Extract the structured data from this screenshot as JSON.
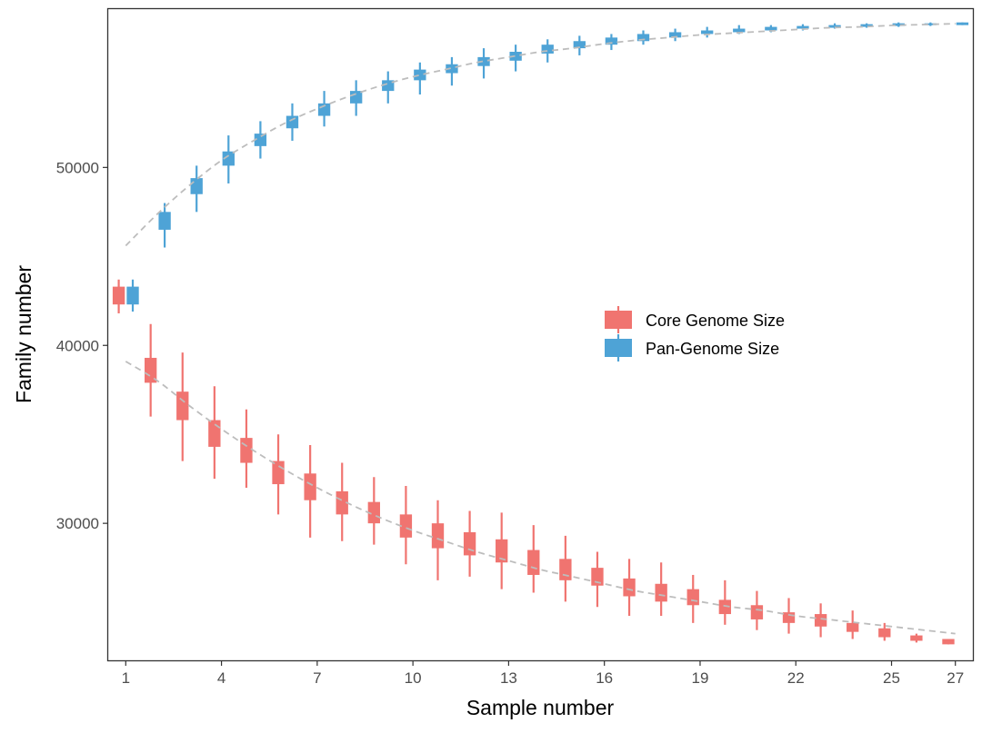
{
  "chart_data": {
    "type": "boxplot",
    "xlabel": "Sample number",
    "ylabel": "Family number",
    "x_ticks": [
      1,
      4,
      7,
      10,
      13,
      16,
      19,
      22,
      25,
      27
    ],
    "y_ticks": [
      30000,
      40000,
      50000
    ],
    "xlim": [
      0.45,
      27.55
    ],
    "ylim": [
      22300,
      58900
    ],
    "grid": false,
    "legend_position": "center-right",
    "series": [
      {
        "name": "Core Genome Size",
        "color": "#F07470",
        "boxes": [
          {
            "x": 1,
            "min": 41800,
            "q1": 42300,
            "q3": 43300,
            "max": 43700
          },
          {
            "x": 2,
            "min": 36000,
            "q1": 37900,
            "q3": 39300,
            "max": 41200
          },
          {
            "x": 3,
            "min": 33500,
            "q1": 35800,
            "q3": 37400,
            "max": 39600
          },
          {
            "x": 4,
            "min": 32500,
            "q1": 34300,
            "q3": 35800,
            "max": 37700
          },
          {
            "x": 5,
            "min": 32000,
            "q1": 33400,
            "q3": 34800,
            "max": 36400
          },
          {
            "x": 6,
            "min": 30500,
            "q1": 32200,
            "q3": 33500,
            "max": 35000
          },
          {
            "x": 7,
            "min": 29200,
            "q1": 31300,
            "q3": 32800,
            "max": 34400
          },
          {
            "x": 8,
            "min": 29000,
            "q1": 30500,
            "q3": 31800,
            "max": 33400
          },
          {
            "x": 9,
            "min": 28800,
            "q1": 30000,
            "q3": 31200,
            "max": 32600
          },
          {
            "x": 10,
            "min": 27700,
            "q1": 29200,
            "q3": 30500,
            "max": 32100
          },
          {
            "x": 11,
            "min": 26800,
            "q1": 28600,
            "q3": 30000,
            "max": 31300
          },
          {
            "x": 12,
            "min": 27000,
            "q1": 28200,
            "q3": 29500,
            "max": 30700
          },
          {
            "x": 13,
            "min": 26300,
            "q1": 27800,
            "q3": 29100,
            "max": 30600
          },
          {
            "x": 14,
            "min": 26100,
            "q1": 27100,
            "q3": 28500,
            "max": 29900
          },
          {
            "x": 15,
            "min": 25600,
            "q1": 26800,
            "q3": 28000,
            "max": 29300
          },
          {
            "x": 16,
            "min": 25300,
            "q1": 26500,
            "q3": 27500,
            "max": 28400
          },
          {
            "x": 17,
            "min": 24800,
            "q1": 25900,
            "q3": 26900,
            "max": 28000
          },
          {
            "x": 18,
            "min": 24800,
            "q1": 25600,
            "q3": 26600,
            "max": 27800
          },
          {
            "x": 19,
            "min": 24400,
            "q1": 25400,
            "q3": 26300,
            "max": 27100
          },
          {
            "x": 20,
            "min": 24300,
            "q1": 24900,
            "q3": 25700,
            "max": 26800
          },
          {
            "x": 21,
            "min": 24000,
            "q1": 24600,
            "q3": 25400,
            "max": 26200
          },
          {
            "x": 22,
            "min": 23800,
            "q1": 24400,
            "q3": 25000,
            "max": 25800
          },
          {
            "x": 23,
            "min": 23600,
            "q1": 24200,
            "q3": 24900,
            "max": 25500
          },
          {
            "x": 24,
            "min": 23500,
            "q1": 23900,
            "q3": 24400,
            "max": 25100
          },
          {
            "x": 25,
            "min": 23400,
            "q1": 23600,
            "q3": 24100,
            "max": 24400
          },
          {
            "x": 26,
            "min": 23300,
            "q1": 23400,
            "q3": 23700,
            "max": 23800
          },
          {
            "x": 27,
            "min": 23200,
            "q1": 23200,
            "q3": 23500,
            "max": 23500
          }
        ],
        "fit": [
          {
            "x": 1,
            "y": 39100
          },
          {
            "x": 2,
            "y": 38000
          },
          {
            "x": 3,
            "y": 36600
          },
          {
            "x": 4,
            "y": 35300
          },
          {
            "x": 5,
            "y": 34100
          },
          {
            "x": 6,
            "y": 33000
          },
          {
            "x": 7,
            "y": 32000
          },
          {
            "x": 8,
            "y": 31100
          },
          {
            "x": 9,
            "y": 30300
          },
          {
            "x": 10,
            "y": 29600
          },
          {
            "x": 11,
            "y": 29000
          },
          {
            "x": 12,
            "y": 28400
          },
          {
            "x": 13,
            "y": 27900
          },
          {
            "x": 14,
            "y": 27400
          },
          {
            "x": 15,
            "y": 27000
          },
          {
            "x": 16,
            "y": 26600
          },
          {
            "x": 17,
            "y": 26200
          },
          {
            "x": 18,
            "y": 25900
          },
          {
            "x": 19,
            "y": 25600
          },
          {
            "x": 20,
            "y": 25300
          },
          {
            "x": 21,
            "y": 25100
          },
          {
            "x": 22,
            "y": 24800
          },
          {
            "x": 23,
            "y": 24600
          },
          {
            "x": 24,
            "y": 24400
          },
          {
            "x": 25,
            "y": 24200
          },
          {
            "x": 26,
            "y": 24000
          },
          {
            "x": 27,
            "y": 23800
          }
        ]
      },
      {
        "name": "Pan-Genome Size",
        "color": "#4EA3D6",
        "boxes": [
          {
            "x": 1,
            "min": 41900,
            "q1": 42300,
            "q3": 43300,
            "max": 43700
          },
          {
            "x": 2,
            "min": 45500,
            "q1": 46500,
            "q3": 47500,
            "max": 48000
          },
          {
            "x": 3,
            "min": 47500,
            "q1": 48500,
            "q3": 49400,
            "max": 50100
          },
          {
            "x": 4,
            "min": 49100,
            "q1": 50100,
            "q3": 50900,
            "max": 51800
          },
          {
            "x": 5,
            "min": 50500,
            "q1": 51200,
            "q3": 51900,
            "max": 52600
          },
          {
            "x": 6,
            "min": 51500,
            "q1": 52200,
            "q3": 52900,
            "max": 53600
          },
          {
            "x": 7,
            "min": 52300,
            "q1": 52900,
            "q3": 53600,
            "max": 54300
          },
          {
            "x": 8,
            "min": 52900,
            "q1": 53600,
            "q3": 54300,
            "max": 54900
          },
          {
            "x": 9,
            "min": 53600,
            "q1": 54300,
            "q3": 54900,
            "max": 55400
          },
          {
            "x": 10,
            "min": 54100,
            "q1": 54900,
            "q3": 55500,
            "max": 55900
          },
          {
            "x": 11,
            "min": 54600,
            "q1": 55300,
            "q3": 55800,
            "max": 56200
          },
          {
            "x": 12,
            "min": 55000,
            "q1": 55700,
            "q3": 56200,
            "max": 56700
          },
          {
            "x": 13,
            "min": 55400,
            "q1": 56000,
            "q3": 56500,
            "max": 56900
          },
          {
            "x": 14,
            "min": 55900,
            "q1": 56400,
            "q3": 56900,
            "max": 57200
          },
          {
            "x": 15,
            "min": 56300,
            "q1": 56700,
            "q3": 57100,
            "max": 57400
          },
          {
            "x": 16,
            "min": 56600,
            "q1": 56900,
            "q3": 57300,
            "max": 57500
          },
          {
            "x": 17,
            "min": 56900,
            "q1": 57100,
            "q3": 57500,
            "max": 57700
          },
          {
            "x": 18,
            "min": 57100,
            "q1": 57300,
            "q3": 57600,
            "max": 57800
          },
          {
            "x": 19,
            "min": 57300,
            "q1": 57500,
            "q3": 57700,
            "max": 57900
          },
          {
            "x": 20,
            "min": 57500,
            "q1": 57600,
            "q3": 57800,
            "max": 58000
          },
          {
            "x": 21,
            "min": 57600,
            "q1": 57700,
            "q3": 57900,
            "max": 58000
          },
          {
            "x": 22,
            "min": 57700,
            "q1": 57800,
            "q3": 57950,
            "max": 58050
          },
          {
            "x": 23,
            "min": 57800,
            "q1": 57850,
            "q3": 58000,
            "max": 58100
          },
          {
            "x": 24,
            "min": 57850,
            "q1": 57900,
            "q3": 58050,
            "max": 58100
          },
          {
            "x": 25,
            "min": 57900,
            "q1": 57950,
            "q3": 58100,
            "max": 58150
          },
          {
            "x": 26,
            "min": 57950,
            "q1": 58000,
            "q3": 58100,
            "max": 58150
          },
          {
            "x": 27,
            "min": 58000,
            "q1": 58000,
            "q3": 58150,
            "max": 58150
          }
        ],
        "fit": [
          {
            "x": 1,
            "y": 45600
          },
          {
            "x": 2,
            "y": 47400
          },
          {
            "x": 3,
            "y": 49000
          },
          {
            "x": 4,
            "y": 50400
          },
          {
            "x": 5,
            "y": 51500
          },
          {
            "x": 6,
            "y": 52500
          },
          {
            "x": 7,
            "y": 53300
          },
          {
            "x": 8,
            "y": 54000
          },
          {
            "x": 9,
            "y": 54600
          },
          {
            "x": 10,
            "y": 55100
          },
          {
            "x": 11,
            "y": 55500
          },
          {
            "x": 12,
            "y": 55900
          },
          {
            "x": 13,
            "y": 56200
          },
          {
            "x": 14,
            "y": 56500
          },
          {
            "x": 15,
            "y": 56700
          },
          {
            "x": 16,
            "y": 56950
          },
          {
            "x": 17,
            "y": 57150
          },
          {
            "x": 18,
            "y": 57300
          },
          {
            "x": 19,
            "y": 57450
          },
          {
            "x": 20,
            "y": 57550
          },
          {
            "x": 21,
            "y": 57650
          },
          {
            "x": 22,
            "y": 57750
          },
          {
            "x": 23,
            "y": 57850
          },
          {
            "x": 24,
            "y": 57900
          },
          {
            "x": 25,
            "y": 57980
          },
          {
            "x": 26,
            "y": 58030
          },
          {
            "x": 27,
            "y": 58080
          }
        ]
      }
    ],
    "fit_line_color": "#BDBDBD"
  }
}
